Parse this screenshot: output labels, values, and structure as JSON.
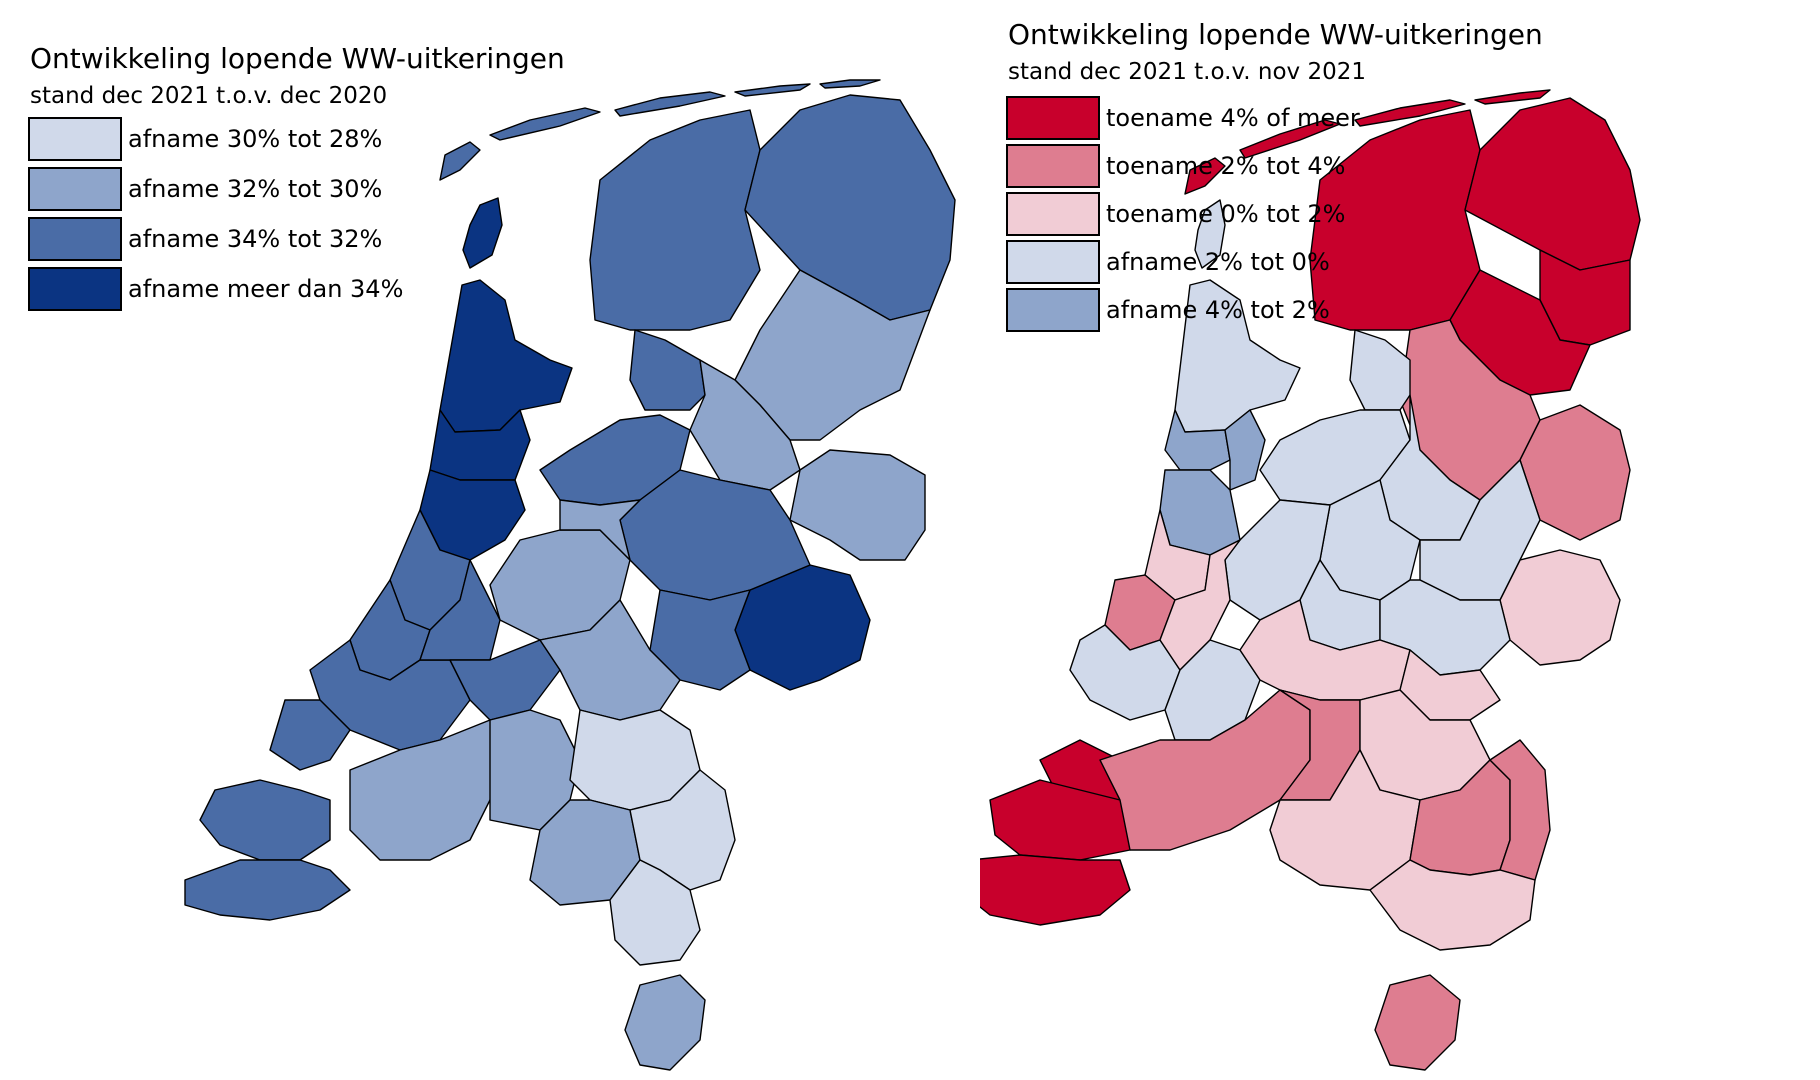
{
  "colors": {
    "blue_1": "#d0d9ea",
    "blue_2": "#8ea5cb",
    "blue_3": "#4a6ca6",
    "blue_4": "#0b3482",
    "red_1": "#c8002c",
    "red_2": "#de7d90",
    "red_3": "#f1ccd5",
    "red_neg1": "#d0d9ea",
    "red_neg2": "#8ea5cb",
    "outline": "#000000"
  },
  "map_left": {
    "title": "Ontwikkeling lopende WW-uitkeringen",
    "subtitle": "stand dec 2021 t.o.v. dec 2020",
    "legend": [
      {
        "label": "afname 30% tot 28%",
        "color": "#d0d9ea"
      },
      {
        "label": "afname 32% tot 30%",
        "color": "#8ea5cb"
      },
      {
        "label": "afname 34% tot 32%",
        "color": "#4a6ca6"
      },
      {
        "label": "afname meer dan 34%",
        "color": "#0b3482"
      }
    ]
  },
  "map_right": {
    "title": "Ontwikkeling lopende WW-uitkeringen",
    "subtitle": "stand dec 2021 t.o.v. nov 2021",
    "legend": [
      {
        "label": "toename 4% of meer",
        "color": "#c8002c"
      },
      {
        "label": "toename 2% tot 4%",
        "color": "#de7d90"
      },
      {
        "label": "toename 0% tot 2%",
        "color": "#f1ccd5"
      },
      {
        "label": "afname 2% tot 0%",
        "color": "#d0d9ea"
      },
      {
        "label": "afname 4% tot 2%",
        "color": "#8ea5cb"
      }
    ]
  }
}
